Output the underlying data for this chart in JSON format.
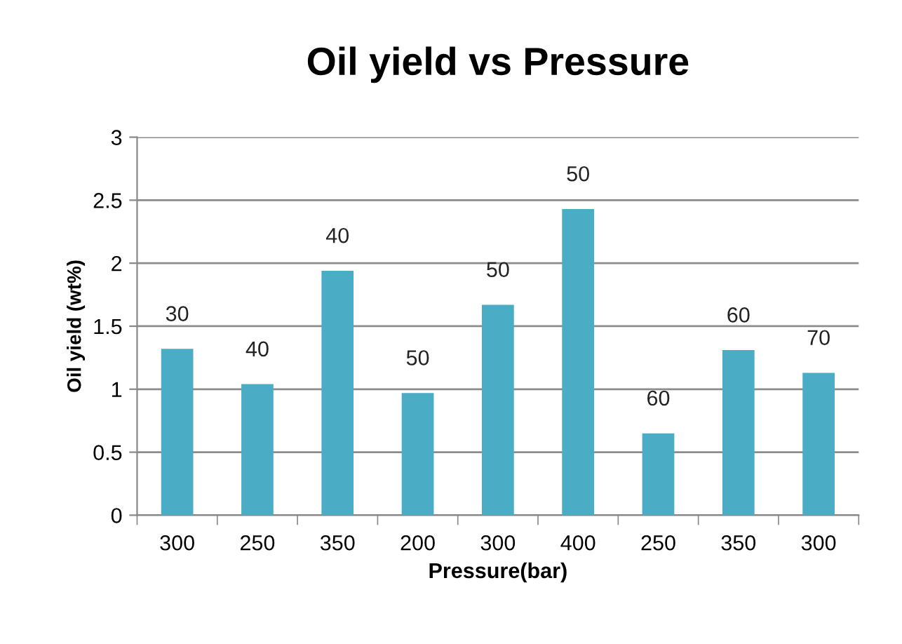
{
  "chart_data": {
    "type": "bar",
    "title": "Oil yield vs Pressure",
    "xlabel": "Pressure(bar)",
    "ylabel": "Oil yield (wt%)",
    "categories": [
      "300",
      "250",
      "350",
      "200",
      "300",
      "400",
      "250",
      "350",
      "300"
    ],
    "values": [
      1.32,
      1.04,
      1.94,
      0.97,
      1.67,
      2.43,
      0.65,
      1.31,
      1.13
    ],
    "annotations": [
      "30",
      "40",
      "40",
      "50",
      "50",
      "50",
      "60",
      "60",
      "70"
    ],
    "color": "#4bacc6",
    "ylim": [
      0,
      3
    ],
    "yticks": [
      0,
      0.5,
      1,
      1.5,
      2,
      2.5,
      3
    ],
    "grid": "y",
    "legend": false
  }
}
